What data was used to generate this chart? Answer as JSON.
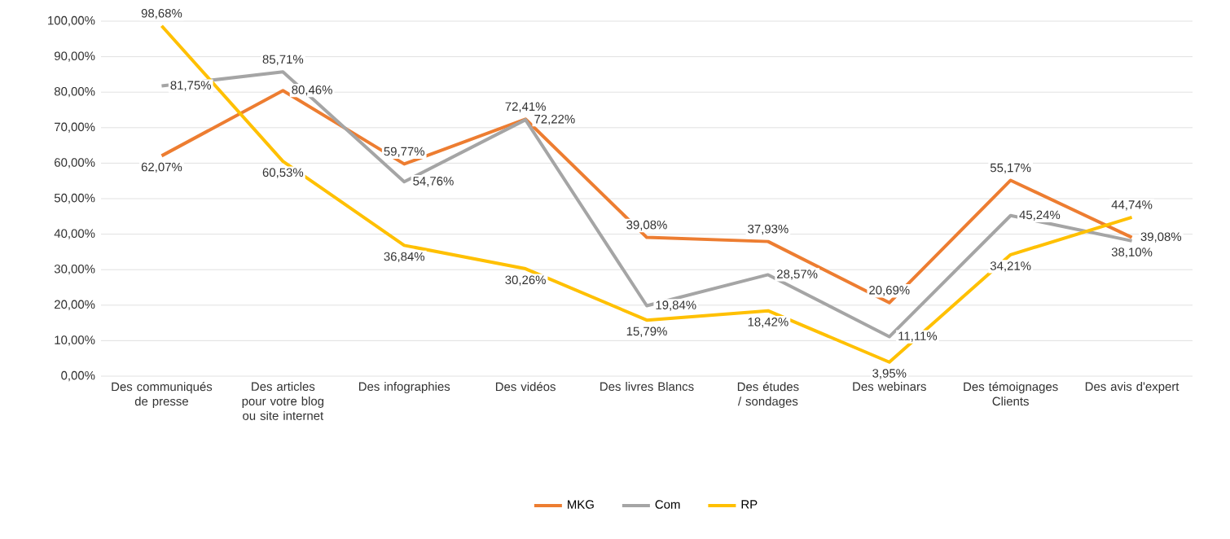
{
  "chart_data": {
    "type": "line",
    "categories": [
      "Des communiqués de presse",
      "Des articles pour votre blog ou site internet",
      "Des infographies",
      "Des vidéos",
      "Des livres Blancs",
      "Des études / sondages",
      "Des webinars",
      "Des témoignages Clients",
      "Des avis d'expert"
    ],
    "series": [
      {
        "name": "MKG",
        "color": "#ed7d31",
        "values": [
          62.07,
          80.46,
          59.77,
          72.41,
          39.08,
          37.93,
          20.69,
          55.17,
          39.08
        ],
        "value_labels": [
          "62,07%",
          "80,46%",
          "59,77%",
          "72,41%",
          "39,08%",
          "37,93%",
          "20,69%",
          "55,17%",
          "39,08%"
        ]
      },
      {
        "name": "Com",
        "color": "#a5a5a5",
        "values": [
          81.75,
          85.71,
          54.76,
          72.22,
          19.84,
          28.57,
          11.11,
          45.24,
          38.1
        ],
        "value_labels": [
          "81,75%",
          "85,71%",
          "54,76%",
          "72,22%",
          "19,84%",
          "28,57%",
          "11,11%",
          "45,24%",
          "38,10%"
        ]
      },
      {
        "name": "RP",
        "color": "#ffc000",
        "values": [
          98.68,
          60.53,
          36.84,
          30.26,
          15.79,
          18.42,
          3.95,
          34.21,
          44.74
        ],
        "value_labels": [
          "98,68%",
          "60,53%",
          "36,84%",
          "30,26%",
          "15,79%",
          "18,42%",
          "3,95%",
          "34,21%",
          "44,74%"
        ]
      }
    ],
    "ylim": [
      0,
      100
    ],
    "yticks": [
      {
        "value": 0,
        "label": "0,00%"
      },
      {
        "value": 10,
        "label": "10,00%"
      },
      {
        "value": 20,
        "label": "20,00%"
      },
      {
        "value": 30,
        "label": "30,00%"
      },
      {
        "value": 40,
        "label": "40,00%"
      },
      {
        "value": 50,
        "label": "50,00%"
      },
      {
        "value": 60,
        "label": "60,00%"
      },
      {
        "value": 70,
        "label": "70,00%"
      },
      {
        "value": 80,
        "label": "80,00%"
      },
      {
        "value": 90,
        "label": "90,00%"
      },
      {
        "value": 100,
        "label": "100,00%"
      }
    ],
    "grid": "y",
    "legend": "bottom",
    "marker": "none",
    "line_style": "solid"
  }
}
